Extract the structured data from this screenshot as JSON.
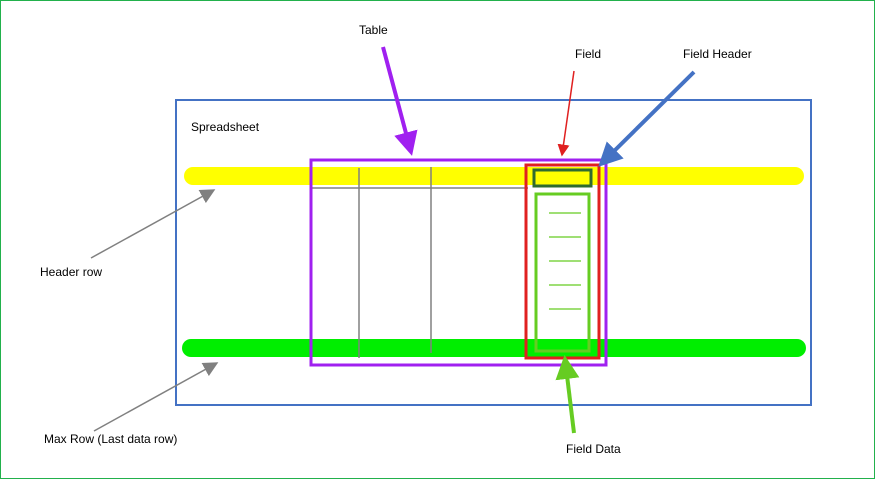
{
  "labels": {
    "table": "Table",
    "field": "Field",
    "field_header": "Field Header",
    "spreadsheet": "Spreadsheet",
    "header_row": "Header row",
    "max_row": "Max Row (Last data row)",
    "field_data": "Field Data"
  },
  "colors": {
    "frame": "#22b14c",
    "spreadsheet": "#4472c4",
    "header_row": "#ffff00",
    "max_row": "#00ee00",
    "table": "#a020f0",
    "field": "#e02020",
    "field_header": "#2f6b2f",
    "field_data": "#66cc22",
    "pointer": "#808080"
  }
}
